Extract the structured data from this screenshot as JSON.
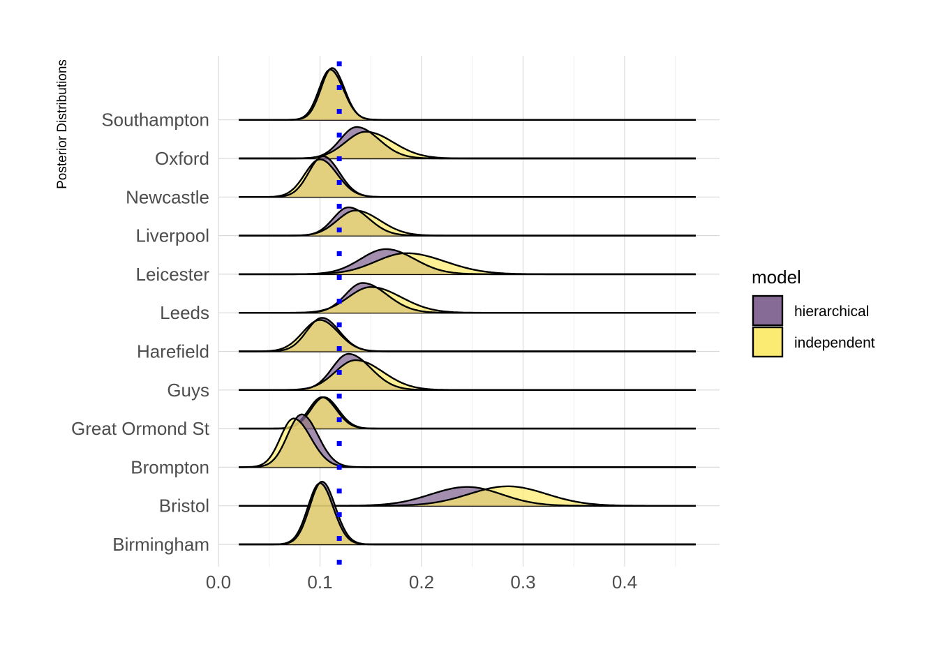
{
  "chart_data": {
    "type": "ridgeline",
    "title": "",
    "xlabel": "",
    "ylabel": "Posterior Distributions",
    "xlim": [
      0.0,
      0.47
    ],
    "x_ticks": [
      0.0,
      0.1,
      0.2,
      0.3,
      0.4
    ],
    "x_tick_labels": [
      "0.0",
      "0.1",
      "0.2",
      "0.3",
      "0.4"
    ],
    "grid": true,
    "legend": {
      "title": "model",
      "position": "right",
      "entries": [
        {
          "name": "hierarchical",
          "color": "#7f6390"
        },
        {
          "name": "independent",
          "color": "#fcea6c"
        }
      ]
    },
    "categories": [
      "Birmingham",
      "Bristol",
      "Brompton",
      "Great Ormond St",
      "Guys",
      "Harefield",
      "Leeds",
      "Leicester",
      "Liverpool",
      "Newcastle",
      "Oxford",
      "Southampton"
    ],
    "reference_line": {
      "x": 0.119,
      "style": "dotted",
      "color": "#0000ff"
    },
    "series": [
      {
        "name": "hierarchical",
        "color": "#7f6390",
        "densities": [
          {
            "category": "Birmingham",
            "mode": 0.102,
            "sd_left": 0.012,
            "sd_right": 0.013,
            "height": 2.0
          },
          {
            "category": "Bristol",
            "mode": 0.245,
            "sd_left": 0.036,
            "sd_right": 0.034,
            "height": 0.6
          },
          {
            "category": "Brompton",
            "mode": 0.082,
            "sd_left": 0.014,
            "sd_right": 0.016,
            "height": 1.68
          },
          {
            "category": "Great Ormond St",
            "mode": 0.104,
            "sd_left": 0.013,
            "sd_right": 0.014,
            "height": 1.0
          },
          {
            "category": "Guys",
            "mode": 0.128,
            "sd_left": 0.016,
            "sd_right": 0.022,
            "height": 1.15
          },
          {
            "category": "Harefield",
            "mode": 0.102,
            "sd_left": 0.015,
            "sd_right": 0.017,
            "height": 1.07
          },
          {
            "category": "Leeds",
            "mode": 0.142,
            "sd_left": 0.017,
            "sd_right": 0.024,
            "height": 0.95
          },
          {
            "category": "Leicester",
            "mode": 0.165,
            "sd_left": 0.025,
            "sd_right": 0.028,
            "height": 0.8
          },
          {
            "category": "Liverpool",
            "mode": 0.128,
            "sd_left": 0.015,
            "sd_right": 0.02,
            "height": 0.9
          },
          {
            "category": "Newcastle",
            "mode": 0.103,
            "sd_left": 0.014,
            "sd_right": 0.016,
            "height": 1.3
          },
          {
            "category": "Oxford",
            "mode": 0.136,
            "sd_left": 0.016,
            "sd_right": 0.022,
            "height": 1.0
          },
          {
            "category": "Southampton",
            "mode": 0.112,
            "sd_left": 0.011,
            "sd_right": 0.012,
            "height": 1.65
          }
        ]
      },
      {
        "name": "independent",
        "color": "#fcea6c",
        "densities": [
          {
            "category": "Birmingham",
            "mode": 0.1,
            "sd_left": 0.012,
            "sd_right": 0.013,
            "height": 1.95
          },
          {
            "category": "Bristol",
            "mode": 0.285,
            "sd_left": 0.038,
            "sd_right": 0.038,
            "height": 0.62
          },
          {
            "category": "Brompton",
            "mode": 0.074,
            "sd_left": 0.013,
            "sd_right": 0.017,
            "height": 1.55
          },
          {
            "category": "Great Ormond St",
            "mode": 0.102,
            "sd_left": 0.013,
            "sd_right": 0.014,
            "height": 1.0
          },
          {
            "category": "Guys",
            "mode": 0.135,
            "sd_left": 0.02,
            "sd_right": 0.027,
            "height": 0.95
          },
          {
            "category": "Harefield",
            "mode": 0.1,
            "sd_left": 0.017,
            "sd_right": 0.018,
            "height": 1.0
          },
          {
            "category": "Leeds",
            "mode": 0.15,
            "sd_left": 0.022,
            "sd_right": 0.03,
            "height": 0.82
          },
          {
            "category": "Leicester",
            "mode": 0.185,
            "sd_left": 0.03,
            "sd_right": 0.038,
            "height": 0.67
          },
          {
            "category": "Liverpool",
            "mode": 0.135,
            "sd_left": 0.018,
            "sd_right": 0.024,
            "height": 0.8
          },
          {
            "category": "Newcastle",
            "mode": 0.1,
            "sd_left": 0.015,
            "sd_right": 0.017,
            "height": 1.2
          },
          {
            "category": "Oxford",
            "mode": 0.145,
            "sd_left": 0.02,
            "sd_right": 0.027,
            "height": 0.85
          },
          {
            "category": "Southampton",
            "mode": 0.11,
            "sd_left": 0.011,
            "sd_right": 0.013,
            "height": 1.6
          }
        ]
      }
    ]
  }
}
